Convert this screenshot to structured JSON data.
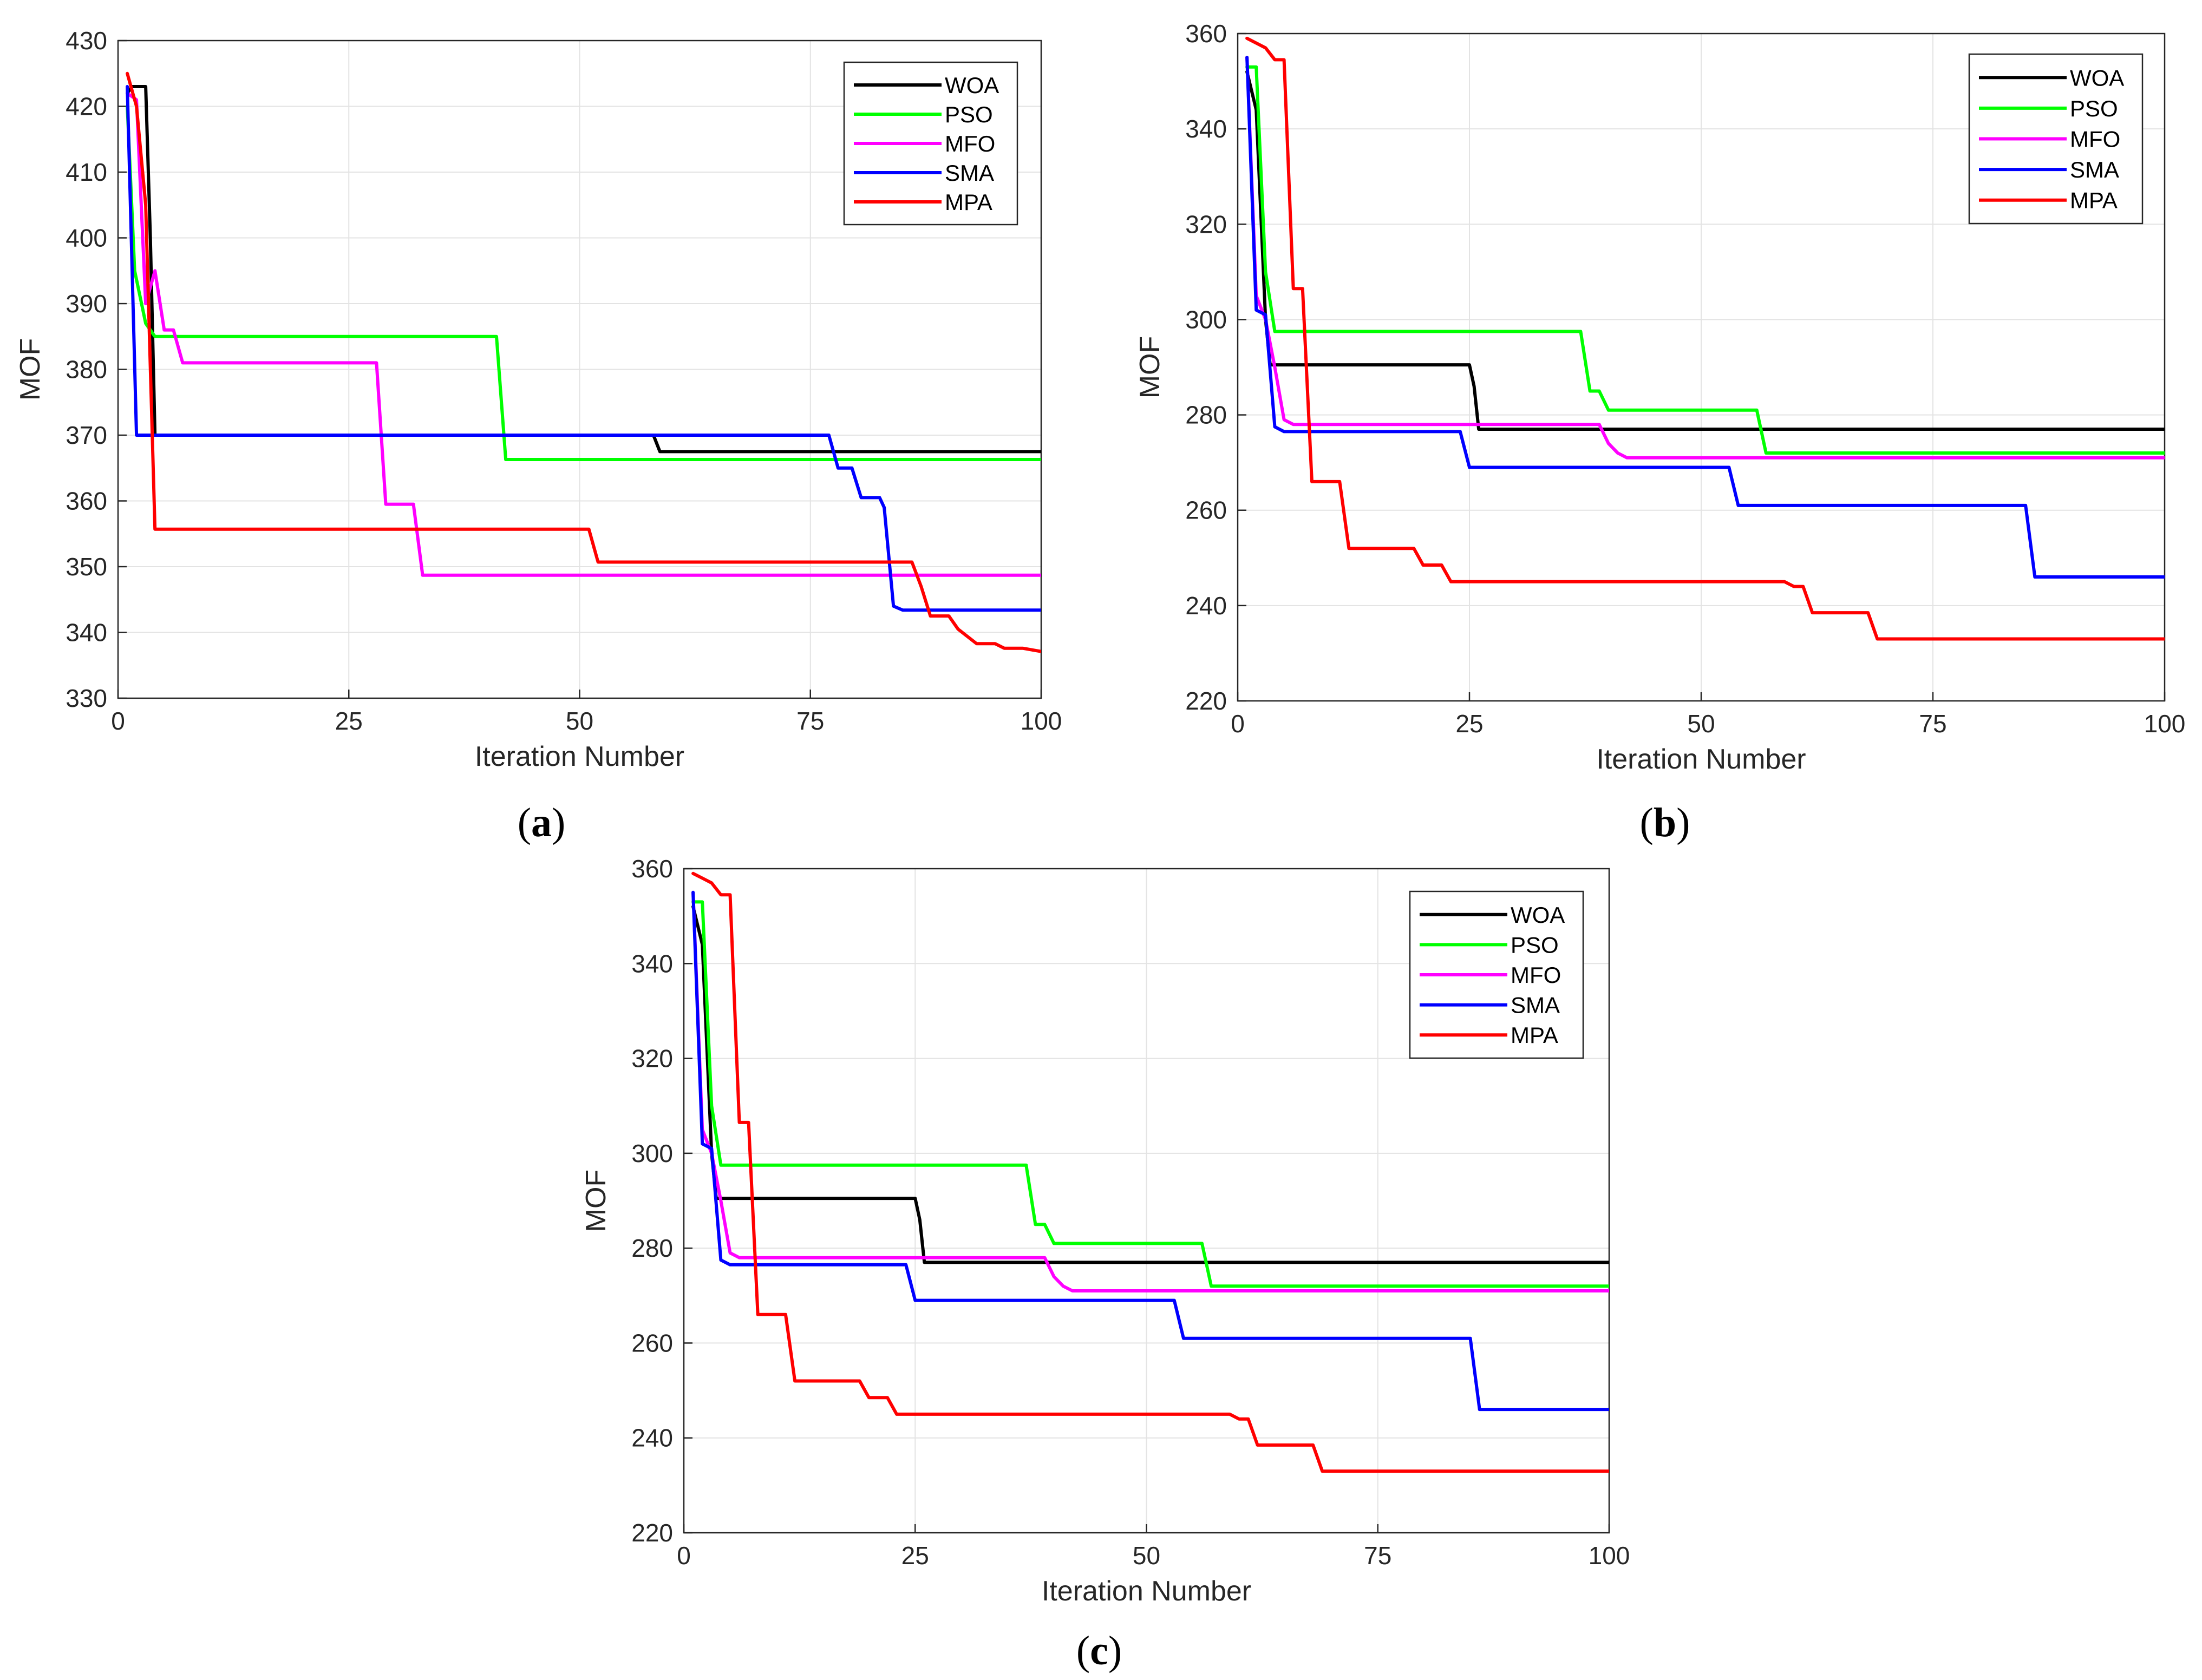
{
  "chart_data": [
    {
      "panel": "a",
      "type": "line",
      "xlabel": "Iteration Number",
      "ylabel": "MOF",
      "xlim": [
        0,
        100
      ],
      "ylim": [
        330,
        430
      ],
      "xticks": [
        0,
        25,
        50,
        75,
        100
      ],
      "yticks": [
        330,
        340,
        350,
        360,
        370,
        380,
        390,
        400,
        410,
        420,
        430
      ],
      "grid": true,
      "legend_position": "top-right",
      "series": [
        {
          "name": "WOA",
          "color": "#000000",
          "points": [
            [
              1,
              422
            ],
            [
              1.5,
              423
            ],
            [
              3,
              423
            ],
            [
              3.5,
              400
            ],
            [
              4,
              370
            ],
            [
              58,
              370
            ],
            [
              58.7,
              367.5
            ],
            [
              100,
              367.5
            ]
          ]
        },
        {
          "name": "PSO",
          "color": "#00ff00",
          "points": [
            [
              1,
              420
            ],
            [
              1.8,
              395
            ],
            [
              3,
              387
            ],
            [
              4,
              385
            ],
            [
              41,
              385
            ],
            [
              42,
              366.3
            ],
            [
              100,
              366.3
            ]
          ]
        },
        {
          "name": "MFO",
          "color": "#ff00ff",
          "points": [
            [
              1,
              422
            ],
            [
              2,
              421
            ],
            [
              3,
              390
            ],
            [
              4,
              395
            ],
            [
              5,
              386
            ],
            [
              6,
              386
            ],
            [
              7,
              381
            ],
            [
              28,
              381
            ],
            [
              29,
              359.5
            ],
            [
              32,
              359.5
            ],
            [
              33,
              348.7
            ],
            [
              100,
              348.7
            ]
          ]
        },
        {
          "name": "SMA",
          "color": "#0000ff",
          "points": [
            [
              1,
              423
            ],
            [
              2,
              370
            ],
            [
              77,
              370
            ],
            [
              78,
              365
            ],
            [
              79.5,
              365
            ],
            [
              80.5,
              360.5
            ],
            [
              82.5,
              360.5
            ],
            [
              83,
              359
            ],
            [
              84,
              344
            ],
            [
              85,
              343.4
            ],
            [
              100,
              343.4
            ]
          ]
        },
        {
          "name": "MPA",
          "color": "#ff0000",
          "points": [
            [
              1,
              425
            ],
            [
              2,
              420
            ],
            [
              3,
              405
            ],
            [
              4,
              355.7
            ],
            [
              51,
              355.7
            ],
            [
              52,
              350.7
            ],
            [
              86,
              350.7
            ],
            [
              87,
              347
            ],
            [
              88,
              342.5
            ],
            [
              90,
              342.5
            ],
            [
              91,
              340.5
            ],
            [
              93,
              338.3
            ],
            [
              95,
              338.3
            ],
            [
              96,
              337.6
            ],
            [
              98,
              337.6
            ],
            [
              100,
              337.1
            ]
          ]
        }
      ]
    },
    {
      "panel": "b",
      "type": "line",
      "xlabel": "Iteration Number",
      "ylabel": "MOF",
      "xlim": [
        0,
        100
      ],
      "ylim": [
        220,
        360
      ],
      "xticks": [
        0,
        25,
        50,
        75,
        100
      ],
      "yticks": [
        220,
        240,
        260,
        280,
        300,
        320,
        340,
        360
      ],
      "grid": true,
      "legend_position": "top-right",
      "series": [
        {
          "name": "WOA",
          "color": "#000000",
          "points": [
            [
              1,
              352
            ],
            [
              2,
              344
            ],
            [
              3,
              300
            ],
            [
              3.5,
              290.5
            ],
            [
              25,
              290.5
            ],
            [
              25.5,
              286
            ],
            [
              26,
              277
            ],
            [
              100,
              277
            ]
          ]
        },
        {
          "name": "PSO",
          "color": "#00ff00",
          "points": [
            [
              1,
              353
            ],
            [
              2,
              353
            ],
            [
              3,
              310
            ],
            [
              4,
              297.5
            ],
            [
              37,
              297.5
            ],
            [
              38,
              285
            ],
            [
              39,
              285
            ],
            [
              40,
              281
            ],
            [
              56,
              281
            ],
            [
              57,
              272
            ],
            [
              100,
              272
            ]
          ]
        },
        {
          "name": "MFO",
          "color": "#ff00ff",
          "points": [
            [
              1,
              355
            ],
            [
              2,
              305
            ],
            [
              3,
              300
            ],
            [
              4,
              290
            ],
            [
              5,
              279
            ],
            [
              6,
              278
            ],
            [
              39,
              278
            ],
            [
              40,
              274
            ],
            [
              41,
              272
            ],
            [
              42,
              271
            ],
            [
              100,
              271
            ]
          ]
        },
        {
          "name": "SMA",
          "color": "#0000ff",
          "points": [
            [
              1,
              355
            ],
            [
              2,
              302
            ],
            [
              3,
              301
            ],
            [
              4,
              277.5
            ],
            [
              5,
              276.5
            ],
            [
              24,
              276.5
            ],
            [
              25,
              269
            ],
            [
              53,
              269
            ],
            [
              54,
              261
            ],
            [
              85,
              261
            ],
            [
              86,
              246
            ],
            [
              100,
              246
            ]
          ]
        },
        {
          "name": "MPA",
          "color": "#ff0000",
          "points": [
            [
              1,
              359
            ],
            [
              2,
              358
            ],
            [
              3,
              357
            ],
            [
              4,
              354.5
            ],
            [
              5,
              354.5
            ],
            [
              6,
              306.5
            ],
            [
              7,
              306.5
            ],
            [
              8,
              266
            ],
            [
              11,
              266
            ],
            [
              12,
              252
            ],
            [
              19,
              252
            ],
            [
              20,
              248.5
            ],
            [
              22,
              248.5
            ],
            [
              23,
              245
            ],
            [
              59,
              245
            ],
            [
              60,
              244
            ],
            [
              61,
              244
            ],
            [
              62,
              238.5
            ],
            [
              68,
              238.5
            ],
            [
              69,
              233
            ],
            [
              100,
              233
            ]
          ]
        }
      ]
    },
    {
      "panel": "c",
      "type": "line",
      "xlabel": "Iteration Number",
      "ylabel": "MOF",
      "xlim": [
        0,
        100
      ],
      "ylim": [
        220,
        360
      ],
      "xticks": [
        0,
        25,
        50,
        75,
        100
      ],
      "yticks": [
        220,
        240,
        260,
        280,
        300,
        320,
        340,
        360
      ],
      "grid": true,
      "legend_position": "top-right",
      "series": [
        {
          "name": "WOA",
          "color": "#000000",
          "points": [
            [
              1,
              352
            ],
            [
              2,
              344
            ],
            [
              3,
              300
            ],
            [
              3.5,
              290.5
            ],
            [
              25,
              290.5
            ],
            [
              25.5,
              286
            ],
            [
              26,
              277
            ],
            [
              100,
              277
            ]
          ]
        },
        {
          "name": "PSO",
          "color": "#00ff00",
          "points": [
            [
              1,
              353
            ],
            [
              2,
              353
            ],
            [
              3,
              310
            ],
            [
              4,
              297.5
            ],
            [
              37,
              297.5
            ],
            [
              38,
              285
            ],
            [
              39,
              285
            ],
            [
              40,
              281
            ],
            [
              56,
              281
            ],
            [
              57,
              272
            ],
            [
              100,
              272
            ]
          ]
        },
        {
          "name": "MFO",
          "color": "#ff00ff",
          "points": [
            [
              1,
              355
            ],
            [
              2,
              305
            ],
            [
              3,
              300
            ],
            [
              4,
              290
            ],
            [
              5,
              279
            ],
            [
              6,
              278
            ],
            [
              39,
              278
            ],
            [
              40,
              274
            ],
            [
              41,
              272
            ],
            [
              42,
              271
            ],
            [
              100,
              271
            ]
          ]
        },
        {
          "name": "SMA",
          "color": "#0000ff",
          "points": [
            [
              1,
              355
            ],
            [
              2,
              302
            ],
            [
              3,
              301
            ],
            [
              4,
              277.5
            ],
            [
              5,
              276.5
            ],
            [
              24,
              276.5
            ],
            [
              25,
              269
            ],
            [
              53,
              269
            ],
            [
              54,
              261
            ],
            [
              85,
              261
            ],
            [
              86,
              246
            ],
            [
              100,
              246
            ]
          ]
        },
        {
          "name": "MPA",
          "color": "#ff0000",
          "points": [
            [
              1,
              359
            ],
            [
              2,
              358
            ],
            [
              3,
              357
            ],
            [
              4,
              354.5
            ],
            [
              5,
              354.5
            ],
            [
              6,
              306.5
            ],
            [
              7,
              306.5
            ],
            [
              8,
              266
            ],
            [
              11,
              266
            ],
            [
              12,
              252
            ],
            [
              19,
              252
            ],
            [
              20,
              248.5
            ],
            [
              22,
              248.5
            ],
            [
              23,
              245
            ],
            [
              59,
              245
            ],
            [
              60,
              244
            ],
            [
              61,
              244
            ],
            [
              62,
              238.5
            ],
            [
              68,
              238.5
            ],
            [
              69,
              233
            ],
            [
              100,
              233
            ]
          ]
        }
      ]
    }
  ]
}
